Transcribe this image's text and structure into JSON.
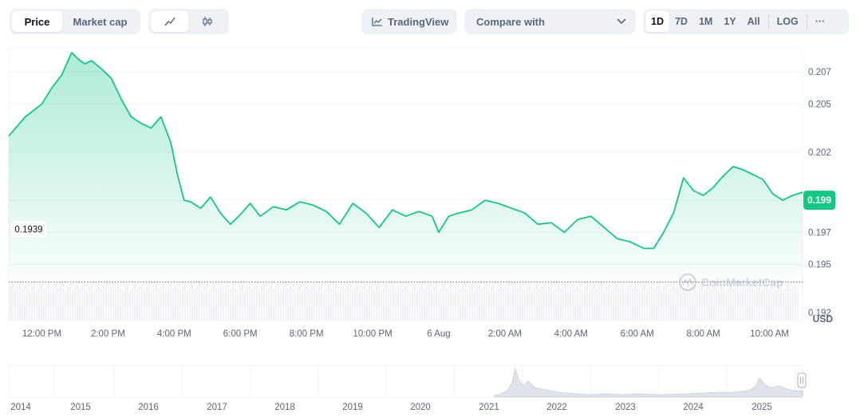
{
  "toolbar": {
    "tabs": [
      {
        "label": "Price",
        "active": true
      },
      {
        "label": "Market cap",
        "active": false
      }
    ],
    "chart_types": [
      {
        "icon": "line-chart-icon",
        "active": true
      },
      {
        "icon": "candlestick-icon",
        "active": false
      }
    ],
    "tradingview_label": "TradingView",
    "compare_label": "Compare with",
    "ranges": [
      {
        "label": "1D",
        "active": true
      },
      {
        "label": "7D",
        "active": false
      },
      {
        "label": "1M",
        "active": false
      },
      {
        "label": "1Y",
        "active": false
      },
      {
        "label": "All",
        "active": false
      }
    ],
    "log_label": "LOG",
    "more_label": "···"
  },
  "price_badge": "0.199",
  "open_price_label": "0.1939",
  "currency_label": "USD",
  "watermark": "CoinMarketCap",
  "colors": {
    "line": "#16c784",
    "badge": "#16c784",
    "grid": "#eff2f5",
    "text": "#58667e"
  },
  "chart_data": {
    "type": "area",
    "xlabel": "",
    "ylabel": "",
    "y_ticks": [
      "0.207",
      "0.205",
      "0.202",
      "0.199",
      "0.197",
      "0.195",
      "0.192"
    ],
    "x_ticks": [
      "12:00 PM",
      "2:00 PM",
      "4:00 PM",
      "6:00 PM",
      "8:00 PM",
      "10:00 PM",
      "6 Aug",
      "2:00 AM",
      "4:00 AM",
      "6:00 AM",
      "8:00 AM",
      "10:00 AM"
    ],
    "x_hours": [
      11.0,
      11.5,
      12.0,
      12.3,
      12.6,
      12.9,
      13.1,
      13.3,
      13.5,
      13.8,
      14.1,
      14.4,
      14.7,
      15.0,
      15.3,
      15.6,
      15.9,
      16.1,
      16.3,
      16.5,
      16.8,
      17.1,
      17.4,
      17.7,
      18.0,
      18.3,
      18.6,
      19.0,
      19.4,
      19.8,
      20.2,
      20.6,
      21.0,
      21.4,
      21.8,
      22.2,
      22.6,
      23.0,
      23.4,
      23.8,
      24.0,
      24.3,
      24.6,
      25.0,
      25.4,
      25.8,
      26.2,
      26.6,
      27.0,
      27.4,
      27.8,
      28.2,
      28.6,
      29.0,
      29.4,
      29.8,
      30.2,
      30.5,
      30.8,
      31.1,
      31.4,
      31.7,
      32.0,
      32.3,
      32.6,
      32.9,
      33.2,
      33.5,
      33.8,
      34.1,
      34.4,
      34.7,
      35.0
    ],
    "values": [
      0.203,
      0.2042,
      0.205,
      0.206,
      0.2068,
      0.2082,
      0.2078,
      0.2075,
      0.2077,
      0.2072,
      0.2066,
      0.2053,
      0.2042,
      0.2038,
      0.2035,
      0.2042,
      0.2026,
      0.2006,
      0.199,
      0.1989,
      0.1985,
      0.1992,
      0.1982,
      0.1975,
      0.1981,
      0.1988,
      0.198,
      0.1986,
      0.1984,
      0.1989,
      0.1987,
      0.1983,
      0.1975,
      0.1988,
      0.1982,
      0.1973,
      0.1984,
      0.198,
      0.1983,
      0.198,
      0.197,
      0.198,
      0.1982,
      0.1984,
      0.199,
      0.1988,
      0.1985,
      0.1982,
      0.1975,
      0.1976,
      0.197,
      0.1978,
      0.198,
      0.1973,
      0.1966,
      0.1964,
      0.196,
      0.196,
      0.197,
      0.1982,
      0.2004,
      0.1996,
      0.1993,
      0.1998,
      0.2005,
      0.2011,
      0.2009,
      0.2006,
      0.2003,
      0.1994,
      0.199,
      0.1993,
      0.1995
    ],
    "ylim": [
      0.1915,
      0.2085
    ],
    "xlim": [
      11.0,
      35.0
    ],
    "open_price": 0.1939,
    "last_price": 0.199,
    "grid": true,
    "navigator": {
      "years": [
        "2014",
        "2015",
        "2016",
        "2017",
        "2018",
        "2019",
        "2020",
        "2021",
        "2022",
        "2023",
        "2024",
        "2025"
      ]
    }
  }
}
